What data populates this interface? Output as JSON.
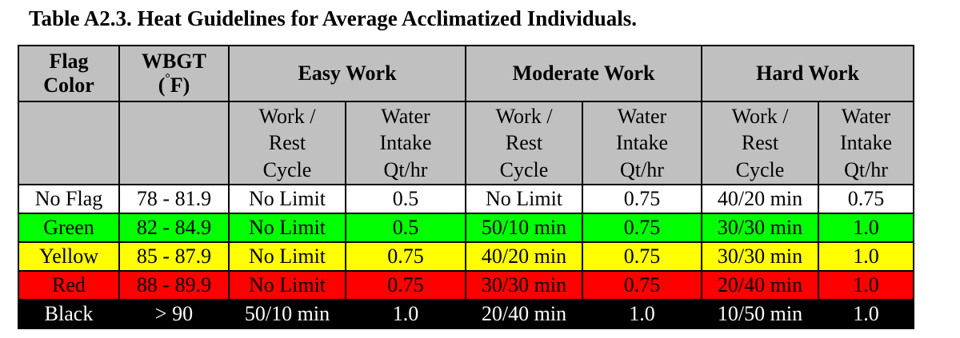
{
  "title": "Table A2.3.  Heat Guidelines for Average Acclimatized Individuals.",
  "headers": {
    "flag_color": [
      "Flag",
      "Color"
    ],
    "wbgt": "WBGT",
    "wbgt_unit_prefix": "(",
    "wbgt_degree": "°",
    "wbgt_unit_suffix": "F)",
    "easy_work": "Easy Work",
    "moderate_work": "Moderate Work",
    "hard_work": "Hard Work",
    "work_rest": [
      "Work /",
      "Rest",
      "Cycle"
    ],
    "water_intake": [
      "Water",
      "Intake",
      "Qt/hr"
    ]
  },
  "rows": [
    {
      "flag": "No Flag",
      "wbgt": "78 - 81.9",
      "easy_cycle": "No Limit",
      "easy_water": "0.5",
      "mod_cycle": "No Limit",
      "mod_water": "0.75",
      "hard_cycle": "40/20 min",
      "hard_water": "0.75",
      "bg": "#ffffff",
      "fg": "#000000"
    },
    {
      "flag": "Green",
      "wbgt": "82 - 84.9",
      "easy_cycle": "No Limit",
      "easy_water": "0.5",
      "mod_cycle": "50/10 min",
      "mod_water": "0.75",
      "hard_cycle": "30/30 min",
      "hard_water": "1.0",
      "bg": "#00ff00",
      "fg": "#000000"
    },
    {
      "flag": "Yellow",
      "wbgt": "85 - 87.9",
      "easy_cycle": "No Limit",
      "easy_water": "0.75",
      "mod_cycle": "40/20 min",
      "mod_water": "0.75",
      "hard_cycle": "30/30 min",
      "hard_water": "1.0",
      "bg": "#ffff00",
      "fg": "#000000"
    },
    {
      "flag": "Red",
      "wbgt": "88 - 89.9",
      "easy_cycle": "No Limit",
      "easy_water": "0.75",
      "mod_cycle": "30/30 min",
      "mod_water": "0.75",
      "hard_cycle": "20/40 min",
      "hard_water": "1.0",
      "bg": "#ff0000",
      "fg": "#000000"
    },
    {
      "flag": "Black",
      "wbgt": "> 90",
      "easy_cycle": "50/10 min",
      "easy_water": "1.0",
      "mod_cycle": "20/40 min",
      "mod_water": "1.0",
      "hard_cycle": "10/50 min",
      "hard_water": "1.0",
      "bg": "#000000",
      "fg": "#ffffff"
    }
  ],
  "colors": {
    "header_bg": "#c0c0c0",
    "border": "#000000"
  }
}
